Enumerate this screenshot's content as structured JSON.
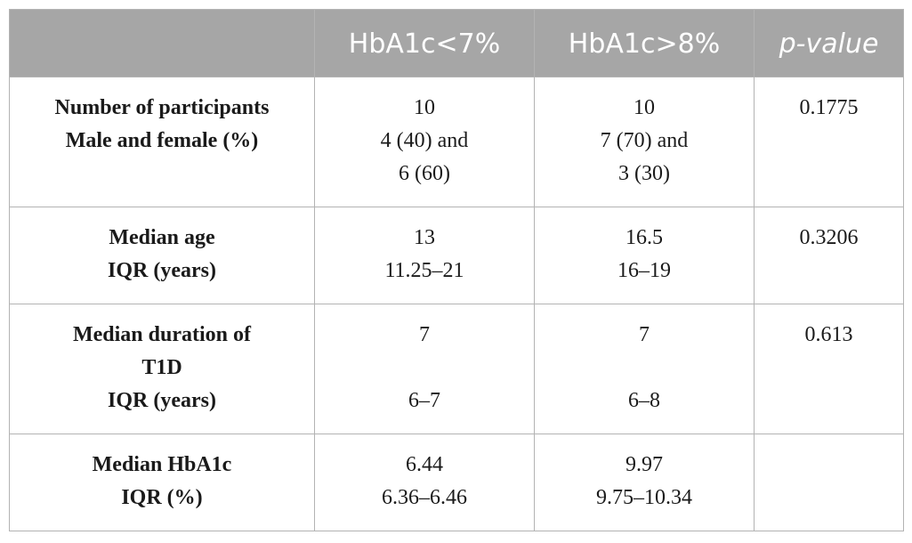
{
  "table": {
    "headers": [
      "",
      "HbA1c<7%",
      "HbA1c>8%",
      "p-value"
    ],
    "rows": [
      {
        "label": [
          "Number of participants",
          "Male and female (%)"
        ],
        "col1": [
          "10",
          "4 (40) and",
          "6 (60)"
        ],
        "col2": [
          "10",
          "7 (70) and",
          "3 (30)"
        ],
        "p": "0.1775"
      },
      {
        "label": [
          "Median age",
          "IQR (years)"
        ],
        "col1": [
          "13",
          "11.25–21"
        ],
        "col2": [
          "16.5",
          "16–19"
        ],
        "p": "0.3206"
      },
      {
        "label": [
          "Median duration of",
          "T1D",
          "IQR (years)"
        ],
        "col1": [
          "7",
          "",
          "6–7"
        ],
        "col2": [
          "7",
          "",
          "6–8"
        ],
        "p": "0.613"
      },
      {
        "label": [
          "Median HbA1c",
          "IQR (%)"
        ],
        "col1": [
          "6.44",
          "6.36–6.46"
        ],
        "col2": [
          "9.97",
          "9.75–10.34"
        ],
        "p": ""
      }
    ]
  }
}
